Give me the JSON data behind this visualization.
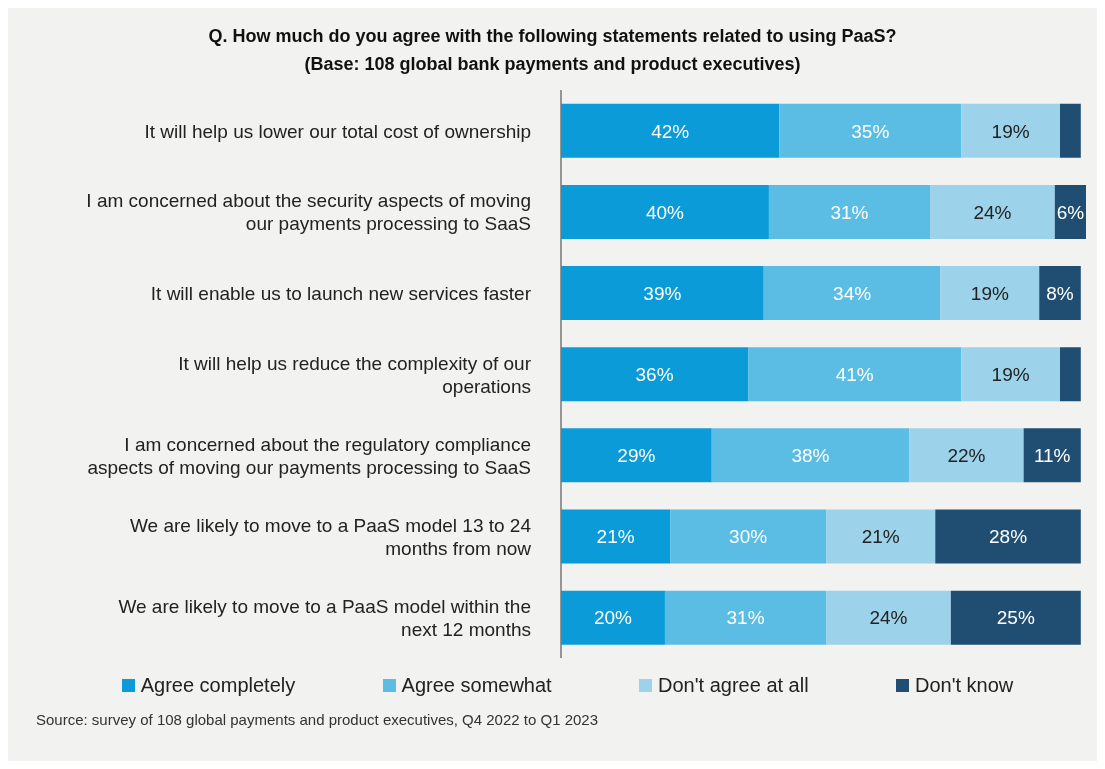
{
  "chart_data": {
    "type": "bar",
    "orientation": "horizontal",
    "stacked": true,
    "title": "Q. How much do you agree with the following statements related to using PaaS?",
    "subtitle": "(Base: 108 global bank payments and product executives)",
    "categories": [
      "It will help us lower our total cost of ownership",
      "I am concerned about the security aspects of moving our payments processing to SaaS",
      "It will enable us to launch new services faster",
      "It will help us reduce the complexity of our operations",
      "I am concerned about the regulatory compliance aspects of moving our payments processing to SaaS",
      "We are likely to move to a PaaS model 13 to 24 months from now",
      "We are likely to move to a PaaS model within the next 12 months"
    ],
    "series": [
      {
        "name": "Agree completely",
        "color": "#0a9bd8",
        "values": [
          42,
          40,
          39,
          36,
          29,
          21,
          20
        ],
        "value_labels": [
          "42%",
          "40%",
          "39%",
          "36%",
          "29%",
          "21%",
          "20%"
        ]
      },
      {
        "name": "Agree somewhat",
        "color": "#5bbde4",
        "values": [
          35,
          31,
          34,
          41,
          38,
          30,
          31
        ],
        "value_labels": [
          "35%",
          "31%",
          "34%",
          "41%",
          "38%",
          "30%",
          "31%"
        ]
      },
      {
        "name": "Don't agree at all",
        "color": "#9dd3ea",
        "values": [
          19,
          24,
          19,
          19,
          22,
          21,
          24
        ],
        "value_labels": [
          "19%",
          "24%",
          "19%",
          "19%",
          "22%",
          "21%",
          "24%"
        ]
      },
      {
        "name": "Don't know",
        "color": "#1f4e72",
        "values": [
          4,
          6,
          8,
          4,
          11,
          28,
          25
        ],
        "value_labels": [
          null,
          "6%",
          "8%",
          null,
          "11%",
          "28%",
          "25%"
        ]
      }
    ],
    "legend": "bottom",
    "annotations": [
      "Source: survey of 108 global payments and product executives, Q4 2022 to Q1 2023"
    ]
  }
}
